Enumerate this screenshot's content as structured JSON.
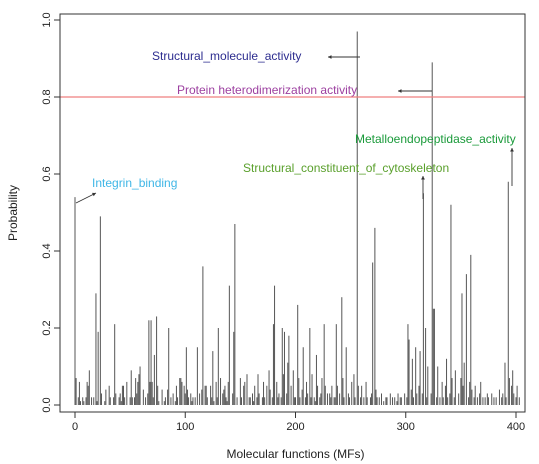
{
  "chart_data": {
    "type": "bar",
    "title": "",
    "xlabel": "Molecular functions (MFs)",
    "ylabel": "Probability",
    "xlim": [
      0,
      400
    ],
    "ylim": [
      0,
      1.0
    ],
    "xticks": [
      0,
      100,
      200,
      300,
      400
    ],
    "yticks": [
      0.0,
      0.2,
      0.4,
      0.6,
      0.8,
      1.0
    ],
    "grid": false,
    "threshold": {
      "value": 0.8,
      "color": "#ef7f7f"
    },
    "bar_color": "#555555",
    "values": [
      0.54,
      0.07,
      0.0,
      0.02,
      0.06,
      0.01,
      0.0,
      0.02,
      0.01,
      0.0,
      0.02,
      0.06,
      0.05,
      0.09,
      0.0,
      0.02,
      0.0,
      0.02,
      0.0,
      0.29,
      0.01,
      0.19,
      0.0,
      0.49,
      0.03,
      0.0,
      0.0,
      0.01,
      0.04,
      0.0,
      0.0,
      0.05,
      0.02,
      0.0,
      0.0,
      0.02,
      0.21,
      0.03,
      0.0,
      0.0,
      0.02,
      0.03,
      0.01,
      0.05,
      0.05,
      0.02,
      0.0,
      0.06,
      0.0,
      0.0,
      0.02,
      0.09,
      0.02,
      0.0,
      0.02,
      0.07,
      0.03,
      0.06,
      0.08,
      0.1,
      0.0,
      0.0,
      0.04,
      0.0,
      0.02,
      0.0,
      0.03,
      0.22,
      0.06,
      0.22,
      0.06,
      0.02,
      0.13,
      0.0,
      0.23,
      0.05,
      0.01,
      0.0,
      0.0,
      0.04,
      0.0,
      0.01,
      0.02,
      0.0,
      0.04,
      0.2,
      0.0,
      0.02,
      0.0,
      0.03,
      0.0,
      0.01,
      0.05,
      0.02,
      0.0,
      0.07,
      0.07,
      0.06,
      0.0,
      0.05,
      0.03,
      0.15,
      0.04,
      0.02,
      0.0,
      0.03,
      0.01,
      0.02,
      0.0,
      0.02,
      0.0,
      0.15,
      0.0,
      0.03,
      0.0,
      0.04,
      0.36,
      0.0,
      0.05,
      0.05,
      0.02,
      0.0,
      0.0,
      0.05,
      0.02,
      0.14,
      0.01,
      0.0,
      0.06,
      0.02,
      0.2,
      0.0,
      0.07,
      0.0,
      0.03,
      0.04,
      0.05,
      0.02,
      0.01,
      0.06,
      0.31,
      0.0,
      0.0,
      0.03,
      0.19,
      0.47,
      0.0,
      0.02,
      0.0,
      0.0,
      0.07,
      0.02,
      0.0,
      0.05,
      0.06,
      0.0,
      0.08,
      0.0,
      0.02,
      0.02,
      0.0,
      0.03,
      0.01,
      0.05,
      0.0,
      0.02,
      0.08,
      0.03,
      0.0,
      0.0,
      0.02,
      0.06,
      0.02,
      0.0,
      0.05,
      0.0,
      0.09,
      0.04,
      0.0,
      0.02,
      0.21,
      0.31,
      0.0,
      0.06,
      0.02,
      0.03,
      0.0,
      0.02,
      0.2,
      0.08,
      0.19,
      0.0,
      0.03,
      0.11,
      0.18,
      0.0,
      0.05,
      0.0,
      0.09,
      0.02,
      0.02,
      0.0,
      0.26,
      0.07,
      0.02,
      0.0,
      0.04,
      0.15,
      0.0,
      0.02,
      0.06,
      0.03,
      0.0,
      0.2,
      0.02,
      0.08,
      0.0,
      0.02,
      0.01,
      0.13,
      0.05,
      0.0,
      0.02,
      0.03,
      0.07,
      0.0,
      0.21,
      0.05,
      0.0,
      0.03,
      0.0,
      0.03,
      0.02,
      0.05,
      0.0,
      0.02,
      0.02,
      0.21,
      0.05,
      0.0,
      0.03,
      0.0,
      0.28,
      0.07,
      0.02,
      0.0,
      0.15,
      0.0,
      0.03,
      0.02,
      0.0,
      0.06,
      0.0,
      0.08,
      0.02,
      0.0,
      0.97,
      0.05,
      0.0,
      0.02,
      0.05,
      0.0,
      0.02,
      0.0,
      0.06,
      0.02,
      0.0,
      0.0,
      0.02,
      0.03,
      0.37,
      0.0,
      0.46,
      0.04,
      0.02,
      0.0,
      0.02,
      0.0,
      0.03,
      0.0,
      0.01,
      0.0,
      0.02,
      0.02,
      0.0,
      0.0,
      0.03,
      0.0,
      0.02,
      0.0,
      0.02,
      0.0,
      0.01,
      0.03,
      0.0,
      0.02,
      0.02,
      0.0,
      0.0,
      0.03,
      0.0,
      0.02,
      0.21,
      0.17,
      0.0,
      0.04,
      0.12,
      0.02,
      0.0,
      0.15,
      0.03,
      0.0,
      0.05,
      0.14,
      0.0,
      0.03,
      0.55,
      0.0,
      0.2,
      0.02,
      0.1,
      0.0,
      0.0,
      0.03,
      0.89,
      0.25,
      0.25,
      0.0,
      0.02,
      0.1,
      0.0,
      0.02,
      0.0,
      0.06,
      0.02,
      0.0,
      0.05,
      0.12,
      0.02,
      0.0,
      0.03,
      0.52,
      0.07,
      0.0,
      0.02,
      0.09,
      0.0,
      0.0,
      0.03,
      0.0,
      0.07,
      0.29,
      0.05,
      0.11,
      0.0,
      0.34,
      0.0,
      0.02,
      0.06,
      0.39,
      0.04,
      0.0,
      0.02,
      0.05,
      0.0,
      0.02,
      0.0,
      0.03,
      0.06,
      0.0,
      0.02,
      0.0,
      0.02,
      0.0,
      0.03,
      0.02,
      0.0,
      0.0,
      0.03,
      0.0,
      0.02,
      0.0,
      0.02,
      0.0,
      0.0,
      0.04,
      0.0,
      0.02,
      0.03,
      0.0,
      0.11,
      0.02,
      0.0,
      0.58,
      0.07,
      0.0,
      0.05,
      0.09,
      0.03,
      0.0,
      0.02,
      0.05,
      0.0,
      0.02,
      0.0,
      0.0
    ],
    "annotations": [
      {
        "text": "Structural_molecule_activity",
        "target_x": 253,
        "target_y": 0.97,
        "color": "#2c2c8f"
      },
      {
        "text": "Protein heterodimerization activity",
        "target_x": 313,
        "target_y": 0.89,
        "color": "#9c3fa0"
      },
      {
        "text": "Metalloendopeptidase_activity",
        "target_x": 387,
        "target_y": 0.58,
        "color": "#1a9a3a"
      },
      {
        "text": "Structural_constituent_of_cytoskeleton",
        "target_x": 307,
        "target_y": 0.55,
        "color": "#5aa02c"
      },
      {
        "text": "Integrin_binding",
        "target_x": 0,
        "target_y": 0.54,
        "color": "#3fb6e6"
      }
    ]
  }
}
